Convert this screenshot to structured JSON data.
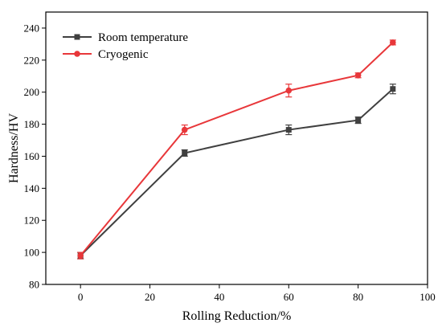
{
  "chart_data": {
    "type": "line",
    "title": "",
    "xlabel": "Rolling Reduction/%",
    "ylabel": "Hardness/HV",
    "xlim": [
      -10,
      100
    ],
    "ylim": [
      80,
      250
    ],
    "xticks": [
      0,
      20,
      40,
      60,
      80,
      100
    ],
    "yticks": [
      80,
      100,
      120,
      140,
      160,
      180,
      200,
      220,
      240
    ],
    "grid": false,
    "legend_position": "top-left",
    "x": [
      0,
      30,
      60,
      80,
      90
    ],
    "series": [
      {
        "name": "Room temperature",
        "color": "#404040",
        "marker": "square",
        "values": [
          98,
          162,
          176.5,
          182.5,
          202
        ],
        "errors": [
          2,
          2,
          3,
          2,
          3
        ]
      },
      {
        "name": "Cryogenic",
        "color": "#e8373a",
        "marker": "circle",
        "values": [
          98,
          176.5,
          201,
          210.5,
          231
        ],
        "errors": [
          2,
          3,
          4,
          1.5,
          1.5
        ]
      }
    ]
  }
}
